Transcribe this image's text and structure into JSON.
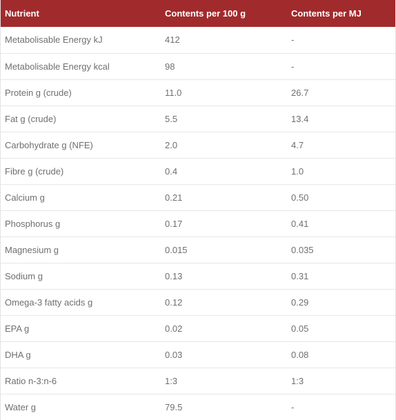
{
  "table": {
    "headers": [
      "Nutrient",
      "Contents per 100 g",
      "Contents per MJ"
    ],
    "rows": [
      [
        "Metabolisable Energy kJ",
        "412",
        "-"
      ],
      [
        "Metabolisable Energy kcal",
        "98",
        "-"
      ],
      [
        "Protein g (crude)",
        "11.0",
        "26.7"
      ],
      [
        "Fat g (crude)",
        "5.5",
        "13.4"
      ],
      [
        "Carbohydrate g (NFE)",
        "2.0",
        "4.7"
      ],
      [
        "Fibre g (crude)",
        "0.4",
        "1.0"
      ],
      [
        "Calcium g",
        "0.21",
        "0.50"
      ],
      [
        "Phosphorus g",
        "0.17",
        "0.41"
      ],
      [
        "Magnesium g",
        "0.015",
        "0.035"
      ],
      [
        "Sodium g",
        "0.13",
        "0.31"
      ],
      [
        "Omega-3 fatty acids g",
        "0.12",
        "0.29"
      ],
      [
        "EPA g",
        "0.02",
        "0.05"
      ],
      [
        "DHA g",
        "0.03",
        "0.08"
      ],
      [
        "Ratio n-3:n-6",
        "1:3",
        "1:3"
      ],
      [
        "Water g",
        "79.5",
        "-"
      ]
    ]
  },
  "colors": {
    "header_bg": "#a12a2c",
    "header_text": "#ffffff",
    "cell_text": "#6f6f6f",
    "row_divider": "#e6e6e6"
  }
}
